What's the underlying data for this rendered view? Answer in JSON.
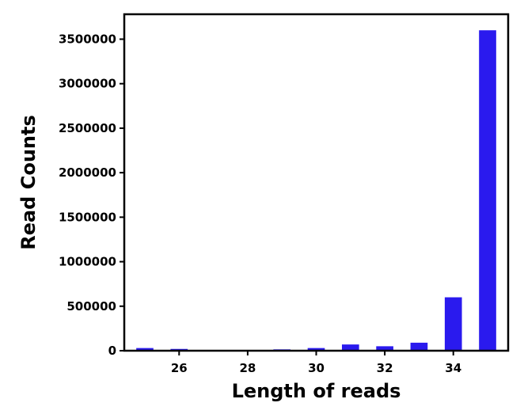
{
  "chart_data": {
    "type": "bar",
    "title": "",
    "xlabel": "Length of reads",
    "ylabel": "Read Counts",
    "x": [
      25,
      26,
      27,
      28,
      29,
      30,
      31,
      32,
      33,
      34,
      35
    ],
    "values": [
      30000,
      20000,
      3000,
      5000,
      15000,
      30000,
      70000,
      50000,
      90000,
      600000,
      3600000
    ],
    "xlim": [
      24.4,
      35.6
    ],
    "ylim": [
      0,
      3780000
    ],
    "x_ticks": [
      26,
      28,
      30,
      32,
      34
    ],
    "x_tick_labels": [
      "26",
      "28",
      "30",
      "32",
      "34"
    ],
    "y_ticks": [
      0,
      500000,
      1000000,
      1500000,
      2000000,
      2500000,
      3000000,
      3500000
    ],
    "y_tick_labels": [
      "0",
      "500000",
      "1000000",
      "1500000",
      "2000000",
      "2500000",
      "3000000",
      "3500000"
    ],
    "bar_width": 0.5,
    "bar_color": "#2a1aee",
    "grid": false,
    "legend": "none"
  }
}
